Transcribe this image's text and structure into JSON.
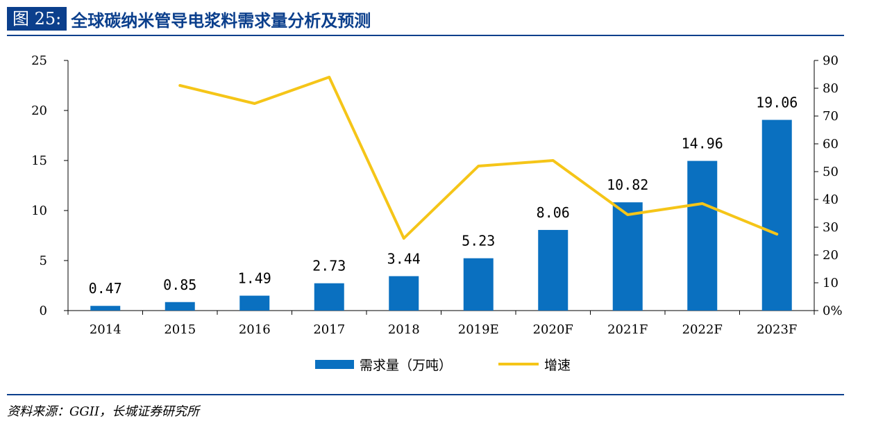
{
  "figure": {
    "label": "图 25:",
    "title": "全球碳纳米管导电浆料需求量分析及预测",
    "source": "资料来源：GGII，长城证券研究所"
  },
  "chart_data": {
    "type": "bar",
    "categories": [
      "2014",
      "2015",
      "2016",
      "2017",
      "2018",
      "2019E",
      "2020F",
      "2021F",
      "2022F",
      "2023F"
    ],
    "series": [
      {
        "name": "需求量（万吨）",
        "type": "bar",
        "axis": "left",
        "color": "#0a70c0",
        "values": [
          0.47,
          0.85,
          1.49,
          2.73,
          3.44,
          5.23,
          8.06,
          10.82,
          14.96,
          19.06
        ],
        "labels": [
          "0.47",
          "0.85",
          "1.49",
          "2.73",
          "3.44",
          "5.23",
          "8.06",
          "10.82",
          "14.96",
          "19.06"
        ]
      },
      {
        "name": "增速",
        "type": "line",
        "axis": "right",
        "color": "#f5c518",
        "values": [
          null,
          81,
          74.5,
          84,
          26,
          52,
          54,
          34.5,
          38.5,
          27.5
        ]
      }
    ],
    "y_left": {
      "ylim": [
        0,
        25
      ],
      "ticks": [
        "0",
        "5",
        "10",
        "15",
        "20",
        "25"
      ]
    },
    "y_right": {
      "ylim": [
        0,
        90
      ],
      "ticks": [
        "0%",
        "10",
        "20",
        "30",
        "40",
        "50",
        "60",
        "70",
        "80",
        "90"
      ]
    },
    "legend": {
      "position": "bottom-center"
    },
    "grid": false
  }
}
